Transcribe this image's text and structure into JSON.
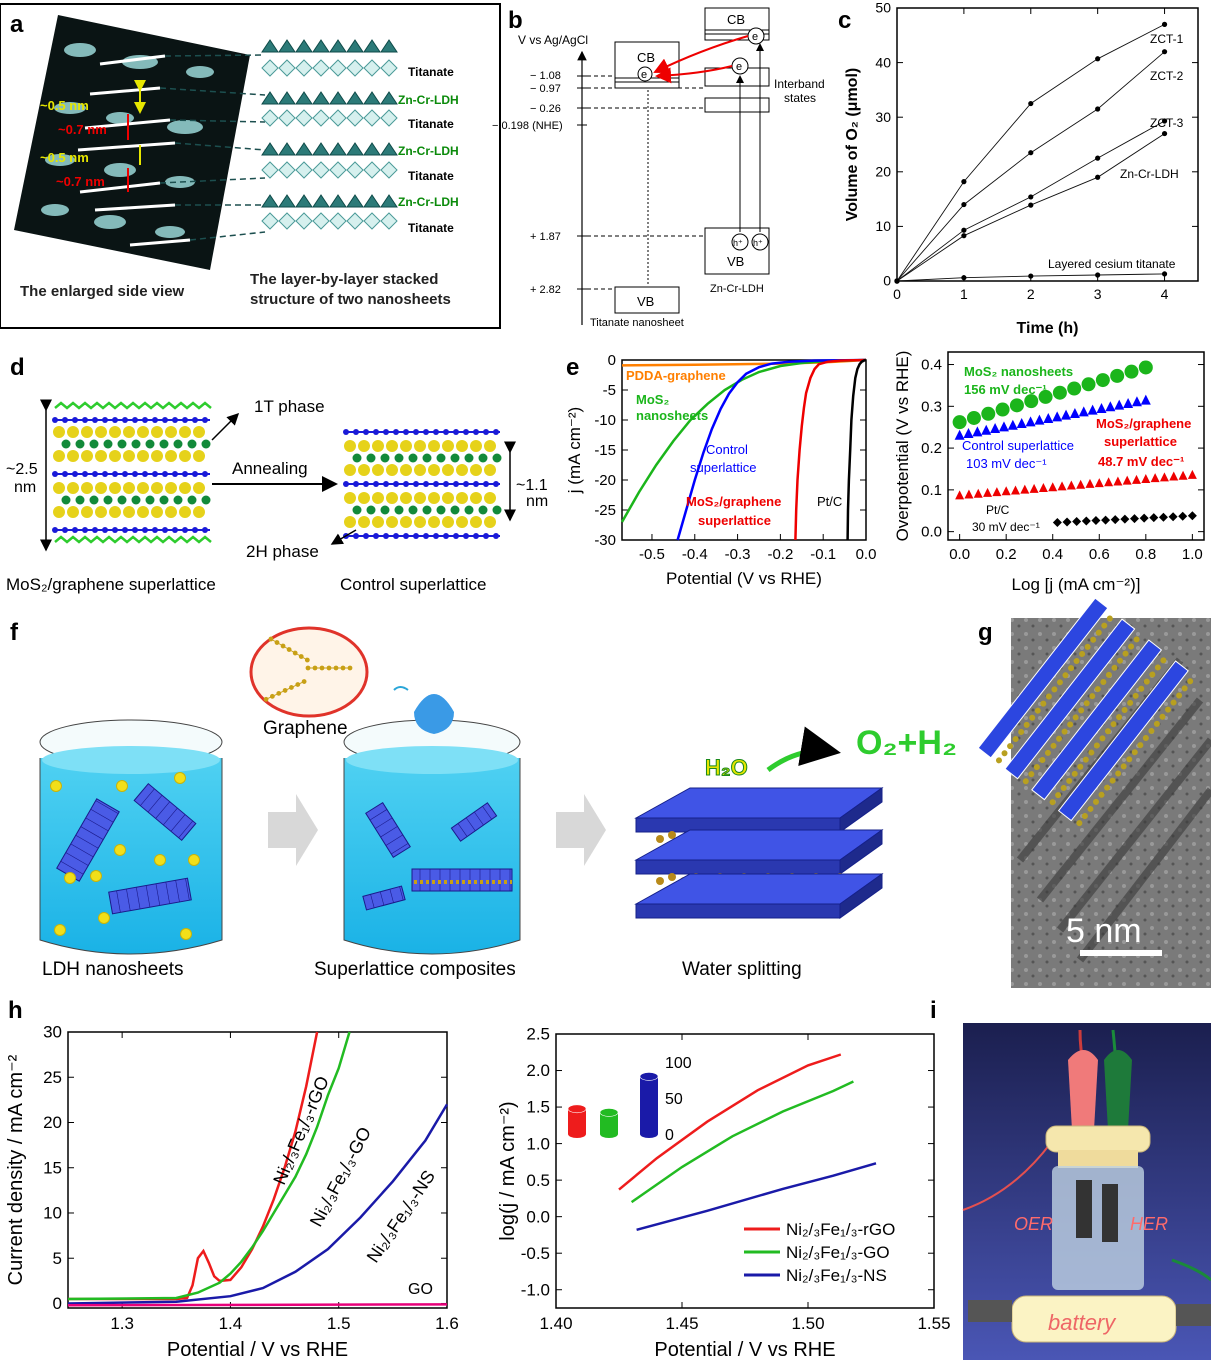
{
  "panels": {
    "a": {
      "letter": "a",
      "caption_left": "The enlarged side view",
      "caption_right_1": "The layer-by-layer stacked",
      "caption_right_2": "structure of two nanosheets",
      "spacing_05": "~0.5 nm",
      "spacing_07": "~0.7 nm",
      "layer_titanate": "Titanate",
      "layer_ldh": "Zn-Cr-LDH"
    },
    "b": {
      "letter": "b",
      "axis_title": "V vs Ag/AgCl",
      "ticks": [
        "− 1.08",
        "− 0.97",
        "− 0.26",
        "− 0.198 (NHE)",
        "+ 1.87",
        "+ 2.82"
      ],
      "cb": "CB",
      "vb": "VB",
      "electron": "e",
      "hole": "h⁺",
      "interband_1": "Interband",
      "interband_2": "states",
      "label_titanate": "Titanate nanosheet",
      "label_ldh": "Zn-Cr-LDH"
    },
    "c": {
      "letter": "c"
    },
    "d": {
      "letter": "d",
      "phase_1t": "1T phase",
      "phase_2h": "2H phase",
      "annealing": "Annealing",
      "thickness_left_1": "~2.5",
      "thickness_left_2": "nm",
      "thickness_right_1": "~1.1",
      "thickness_right_2": "nm",
      "label_left": "MoS₂/graphene superlattice",
      "label_right": "Control superlattice"
    },
    "e": {
      "letter": "e"
    },
    "f": {
      "letter": "f",
      "graphene": "Graphene",
      "label_1": "LDH nanosheets",
      "label_2": "Superlattice composites",
      "label_3": "Water splitting",
      "h2o": "H₂O",
      "products": "O₂+H₂"
    },
    "g": {
      "letter": "g",
      "scale_bar": "5 nm"
    },
    "h": {
      "letter": "h"
    },
    "i": {
      "letter": "i",
      "oer": "OER",
      "her": "HER",
      "battery": "battery"
    }
  },
  "chart_data": [
    {
      "id": "c",
      "type": "line",
      "xlabel": "Time (h)",
      "ylabel": "Volume of O₂ (μmol)",
      "xlim": [
        0,
        4.5
      ],
      "ylim": [
        0,
        50
      ],
      "xticks": [
        0,
        1,
        2,
        3,
        4
      ],
      "yticks": [
        0,
        10,
        20,
        30,
        40,
        50
      ],
      "series": [
        {
          "name": "ZCT-1",
          "x": [
            0,
            1,
            2,
            3,
            4
          ],
          "y": [
            0,
            18.2,
            32.5,
            40.7,
            47.0
          ]
        },
        {
          "name": "ZCT-2",
          "x": [
            0,
            1,
            2,
            3,
            4
          ],
          "y": [
            0,
            14.0,
            23.5,
            31.5,
            42.0
          ]
        },
        {
          "name": "ZCT-3",
          "x": [
            0,
            1,
            2,
            3,
            4
          ],
          "y": [
            0,
            9.3,
            15.4,
            22.5,
            29.3
          ]
        },
        {
          "name": "Zn-Cr-LDH",
          "x": [
            0,
            1,
            2,
            3,
            4
          ],
          "y": [
            0,
            8.3,
            13.9,
            19.0,
            27.0
          ]
        },
        {
          "name": "Layered cesium titanate",
          "x": [
            0,
            1,
            2,
            3,
            4
          ],
          "y": [
            0,
            0.6,
            0.9,
            1.1,
            1.3
          ]
        }
      ]
    },
    {
      "id": "e1",
      "type": "line",
      "xlabel": "Potential (V vs RHE)",
      "ylabel": "j (mA cm⁻²)",
      "xlim": [
        -0.57,
        0
      ],
      "ylim": [
        -30,
        0
      ],
      "xticks": [
        -0.5,
        -0.4,
        -0.3,
        -0.2,
        -0.1,
        0.0
      ],
      "xticklabels": [
        "-0.5",
        "-0.4",
        "-0.3",
        "-0.2",
        "-0.1",
        "0.0"
      ],
      "yticks": [
        0,
        -5,
        -10,
        -15,
        -20,
        -25,
        -30
      ],
      "series": [
        {
          "name": "PDDA-graphene",
          "color": "#ff7f00",
          "x": [
            -0.57,
            -0.4,
            -0.2,
            -0.1,
            -0.05,
            0
          ],
          "y": [
            -0.9,
            -0.8,
            -0.6,
            -0.4,
            -0.2,
            0
          ]
        },
        {
          "name": "MoS₂ nanosheets",
          "color": "#1bb51b",
          "x": [
            -0.57,
            -0.53,
            -0.49,
            -0.45,
            -0.41,
            -0.37,
            -0.33,
            -0.29,
            -0.25,
            -0.2,
            -0.15,
            -0.1,
            -0.05,
            0
          ],
          "y": [
            -27,
            -22,
            -17.5,
            -13.5,
            -10,
            -7.3,
            -5,
            -3.3,
            -2,
            -1,
            -0.5,
            -0.2,
            -0.1,
            0
          ]
        },
        {
          "name": "Control superlattice",
          "color": "#0000ff",
          "x": [
            -0.44,
            -0.42,
            -0.4,
            -0.38,
            -0.36,
            -0.34,
            -0.32,
            -0.3,
            -0.28,
            -0.25,
            -0.22,
            -0.18,
            -0.12,
            -0.05,
            0
          ],
          "y": [
            -30,
            -25,
            -20,
            -15.5,
            -11.5,
            -8.2,
            -5.6,
            -3.7,
            -2.3,
            -1.2,
            -0.6,
            -0.3,
            -0.1,
            -0.05,
            0
          ]
        },
        {
          "name": "MoS₂/graphene superlattice",
          "color": "#ee0000",
          "x": [
            -0.165,
            -0.163,
            -0.16,
            -0.155,
            -0.15,
            -0.145,
            -0.14,
            -0.13,
            -0.12,
            -0.11,
            -0.09,
            -0.06,
            -0.03,
            0
          ],
          "y": [
            -30,
            -25,
            -20,
            -15,
            -11,
            -8,
            -5.5,
            -3,
            -1.5,
            -0.7,
            -0.3,
            -0.1,
            -0.05,
            0
          ]
        },
        {
          "name": "Pt/C",
          "color": "#000000",
          "x": [
            -0.043,
            -0.042,
            -0.04,
            -0.037,
            -0.034,
            -0.03,
            -0.025,
            -0.02,
            -0.015,
            -0.01,
            -0.005,
            0
          ],
          "y": [
            -30,
            -25,
            -20,
            -15,
            -10,
            -6,
            -3,
            -1.5,
            -0.7,
            -0.3,
            -0.1,
            0
          ]
        }
      ],
      "annotations": [
        "PDDA-graphene",
        "MoS₂",
        "nanosheets",
        "Control",
        "superlattice",
        "MoS₂/graphene",
        "superlattice",
        "Pt/C"
      ]
    },
    {
      "id": "e2",
      "type": "scatter",
      "xlabel": "Log [j (mA cm⁻²)]",
      "ylabel": "Overpotential (V vs RHE)",
      "xlim": [
        -0.05,
        1.05
      ],
      "ylim": [
        -0.02,
        0.43
      ],
      "xticks": [
        0.0,
        0.2,
        0.4,
        0.6,
        0.8,
        1.0
      ],
      "xticklabels": [
        "0.0",
        "0.2",
        "0.4",
        "0.6",
        "0.8",
        "1.0"
      ],
      "yticks": [
        0.0,
        0.1,
        0.2,
        0.3,
        0.4
      ],
      "yticklabels": [
        "0.0",
        "0.1",
        "0.2",
        "0.3",
        "0.4"
      ],
      "series": [
        {
          "name": "MoS₂ nanosheets",
          "slope": "156 mV dec⁻¹",
          "color": "#1bb51b",
          "x": [
            0,
            0.8
          ],
          "y": [
            0.262,
            0.393
          ]
        },
        {
          "name": "Control superlattice",
          "slope": "103 mV dec⁻¹",
          "color": "#0000ff",
          "x": [
            0,
            0.8
          ],
          "y": [
            0.232,
            0.316
          ]
        },
        {
          "name": "MoS₂/graphene superlattice",
          "slope": "48.7 mV dec⁻¹",
          "color": "#ee0000",
          "x": [
            0,
            1.0
          ],
          "y": [
            0.088,
            0.137
          ]
        },
        {
          "name": "Pt/C",
          "slope": "30 mV dec⁻¹",
          "color": "#000000",
          "x": [
            0.42,
            1.0
          ],
          "y": [
            0.022,
            0.038
          ]
        }
      ],
      "annotations": [
        "MoS₂ nanosheets",
        "156 mV dec⁻¹",
        "Control superlattice",
        "103 mV dec⁻¹",
        "MoS₂/graphene",
        "superlattice",
        "48.7 mV dec⁻¹",
        "Pt/C",
        "30 mV dec⁻¹"
      ]
    },
    {
      "id": "h1",
      "type": "line",
      "xlabel": "Potential / V vs RHE",
      "ylabel": "Current density / mA cm⁻²",
      "xlim": [
        1.25,
        1.6
      ],
      "ylim": [
        -0.5,
        30
      ],
      "xticks": [
        1.3,
        1.4,
        1.5,
        1.6
      ],
      "xticklabels": [
        "1.3",
        "1.4",
        "1.5",
        "1.6"
      ],
      "yticks": [
        0,
        5,
        10,
        15,
        20,
        25,
        30
      ],
      "series": [
        {
          "name": "Ni₂/₃Fe₁/₃-rGO",
          "color": "#ee1c1c",
          "x": [
            1.25,
            1.35,
            1.36,
            1.365,
            1.37,
            1.375,
            1.38,
            1.385,
            1.39,
            1.4,
            1.41,
            1.42,
            1.43,
            1.44,
            1.45,
            1.46,
            1.47,
            1.48
          ],
          "y": [
            0.5,
            0.5,
            0.6,
            2,
            5,
            5.8,
            4.5,
            3,
            2.5,
            2.6,
            4,
            6,
            8.5,
            11.5,
            15,
            19,
            24,
            30
          ]
        },
        {
          "name": "Ni₂/₃Fe₁/₃-GO",
          "color": "#22bb22",
          "x": [
            1.25,
            1.35,
            1.37,
            1.39,
            1.4,
            1.41,
            1.42,
            1.43,
            1.44,
            1.45,
            1.46,
            1.47,
            1.48,
            1.49,
            1.5,
            1.51
          ],
          "y": [
            0.5,
            0.6,
            1.2,
            2.3,
            3.3,
            4.6,
            6.2,
            8,
            10,
            12,
            14,
            16.5,
            19.5,
            23,
            26,
            30
          ]
        },
        {
          "name": "Ni₂/₃Fe₁/₃-NS",
          "color": "#1a1aa8",
          "x": [
            1.25,
            1.35,
            1.4,
            1.43,
            1.46,
            1.49,
            1.52,
            1.55,
            1.58,
            1.6
          ],
          "y": [
            0,
            0.2,
            0.8,
            1.7,
            3.5,
            6,
            9.5,
            13.5,
            18,
            22
          ]
        },
        {
          "name": "GO",
          "color": "#e8007a",
          "x": [
            1.25,
            1.6
          ],
          "y": [
            -0.2,
            -0.1
          ]
        }
      ],
      "annotations": [
        "Ni₂/₃Fe₁/₃-rGO",
        "Ni₂/₃Fe₁/₃-GO",
        "Ni₂/₃Fe₁/₃-NS",
        "GO"
      ]
    },
    {
      "id": "h2",
      "type": "line",
      "xlabel": "Potential / V vs RHE",
      "ylabel": "log(j / mA cm⁻²)",
      "xlim": [
        1.4,
        1.55
      ],
      "ylim": [
        -1.25,
        2.5
      ],
      "xticks": [
        1.4,
        1.45,
        1.5,
        1.55
      ],
      "xticklabels": [
        "1.40",
        "1.45",
        "1.50",
        "1.55"
      ],
      "yticks": [
        -1.0,
        -0.5,
        0.0,
        0.5,
        1.0,
        1.5,
        2.0,
        2.5
      ],
      "yticklabels": [
        "-1.0",
        "-0.5",
        "0.0",
        "0.5",
        "1.0",
        "1.5",
        "2.0",
        "2.5"
      ],
      "series": [
        {
          "name": "Ni₂/₃Fe₁/₃-rGO",
          "color": "#ee1c1c",
          "x": [
            1.425,
            1.44,
            1.46,
            1.48,
            1.5,
            1.513
          ],
          "y": [
            0.37,
            0.8,
            1.3,
            1.73,
            2.07,
            2.22
          ]
        },
        {
          "name": "Ni₂/₃Fe₁/₃-GO",
          "color": "#22bb22",
          "x": [
            1.43,
            1.45,
            1.47,
            1.49,
            1.51,
            1.518
          ],
          "y": [
            0.2,
            0.68,
            1.1,
            1.44,
            1.72,
            1.85
          ]
        },
        {
          "name": "Ni₂/₃Fe₁/₃-NS",
          "color": "#1a1aa8",
          "x": [
            1.432,
            1.46,
            1.49,
            1.51,
            1.527
          ],
          "y": [
            -0.18,
            0.08,
            0.38,
            0.56,
            0.73
          ]
        }
      ],
      "inset": {
        "type": "bar",
        "ticks": [
          0,
          50,
          100
        ],
        "values": [
          35,
          30,
          80
        ],
        "colors": [
          "#ee1c1c",
          "#22bb22",
          "#1a1aa8"
        ]
      }
    }
  ]
}
